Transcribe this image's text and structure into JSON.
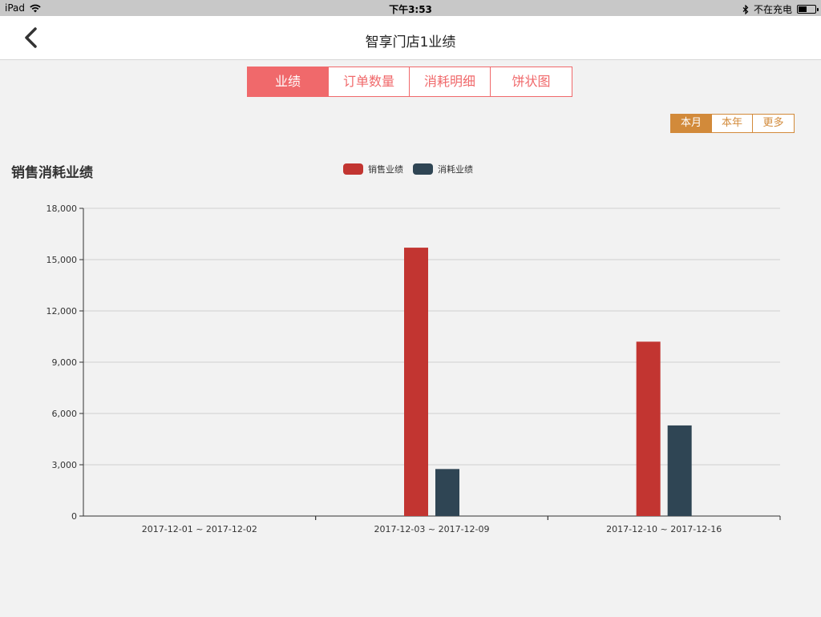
{
  "status_bar": {
    "device": "iPad",
    "time": "下午3:53",
    "charging_text": "不在充电",
    "battery_level": 0.45
  },
  "nav": {
    "title": "智享门店1业绩"
  },
  "tabs": [
    {
      "label": "业绩",
      "active": true
    },
    {
      "label": "订单数量",
      "active": false
    },
    {
      "label": "消耗明细",
      "active": false
    },
    {
      "label": "饼状图",
      "active": false
    }
  ],
  "period_tabs": [
    {
      "label": "本月",
      "active": true
    },
    {
      "label": "本年",
      "active": false
    },
    {
      "label": "更多",
      "active": false
    }
  ],
  "chart_data": {
    "type": "bar",
    "title": "销售消耗业绩",
    "categories": [
      "2017-12-01 ~ 2017-12-02",
      "2017-12-03 ~ 2017-12-09",
      "2017-12-10 ~ 2017-12-16"
    ],
    "series": [
      {
        "name": "销售业绩",
        "color": "#c23531",
        "values": [
          0,
          15700,
          10200
        ]
      },
      {
        "name": "消耗业绩",
        "color": "#2f4554",
        "values": [
          0,
          2750,
          5300
        ]
      }
    ],
    "yticks": [
      "0",
      "3,000",
      "6,000",
      "9,000",
      "12,000",
      "15,000",
      "18,000"
    ],
    "ylim": [
      0,
      18000
    ],
    "grid": true,
    "legend": "top-center"
  }
}
